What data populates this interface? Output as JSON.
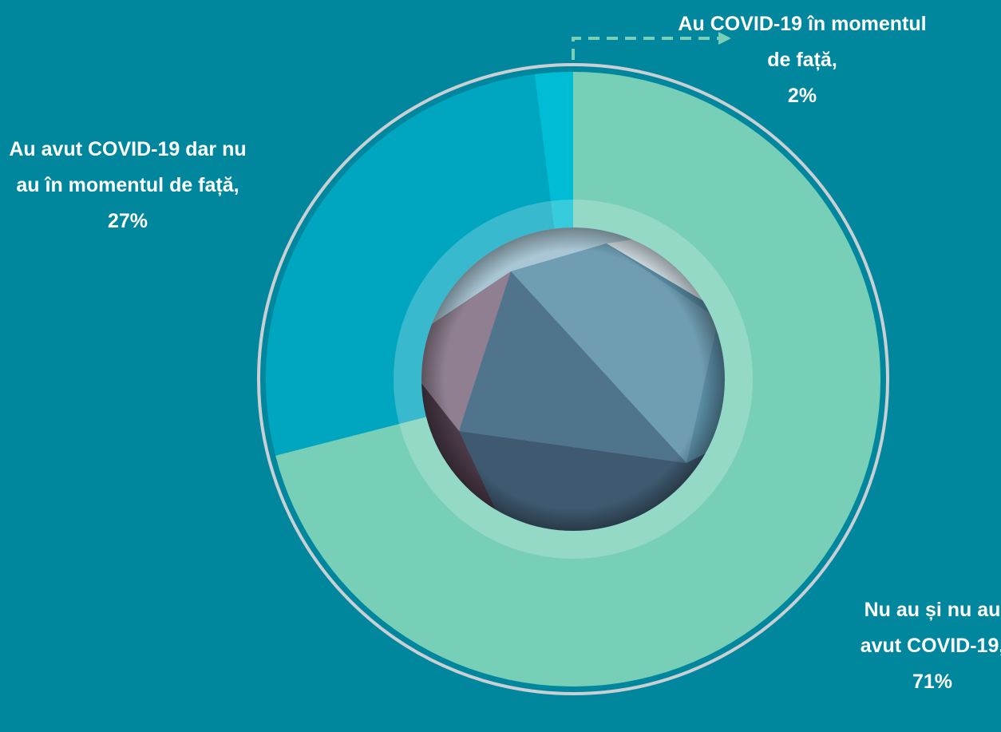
{
  "chart_data": {
    "type": "donut",
    "categories": [
      "Nu au și nu au avut COVID-19,",
      "Au avut COVID-19 dar nu au în momentul de față,",
      "Au COVID-19 în momentul de față,"
    ],
    "values": [
      71,
      27,
      2
    ],
    "value_labels": [
      "71%",
      "27%",
      "2%"
    ],
    "colors": [
      "#76cfb6",
      "#00a6bf",
      "#00bcd4"
    ]
  }
}
